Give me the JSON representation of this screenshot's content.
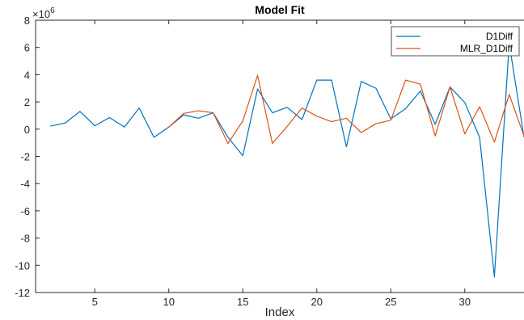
{
  "chart_data": {
    "type": "line",
    "title": "Model Fit",
    "xlabel": "Index",
    "ylabel": "",
    "y_exponent_label": "×10",
    "y_exponent_power": "6",
    "xlim": [
      1,
      34
    ],
    "ylim": [
      -12,
      8
    ],
    "x_ticks": [
      5,
      10,
      15,
      20,
      25,
      30
    ],
    "y_ticks": [
      -12,
      -10,
      -8,
      -6,
      -4,
      -2,
      0,
      2,
      4,
      6,
      8
    ],
    "grid": false,
    "legend_position": "top-right",
    "series": [
      {
        "name": "D1Diff",
        "color": "#0072BD",
        "x": [
          2,
          3,
          4,
          5,
          6,
          7,
          8,
          9,
          10,
          11,
          12,
          13,
          14,
          15,
          16,
          17,
          18,
          19,
          20,
          21,
          22,
          23,
          24,
          25,
          26,
          27,
          28,
          29,
          30,
          31,
          32,
          33,
          34
        ],
        "values": [
          0.22,
          0.45,
          1.3,
          0.25,
          0.85,
          0.15,
          1.55,
          -0.6,
          0.15,
          1.05,
          0.8,
          1.2,
          -0.6,
          -1.95,
          2.95,
          1.2,
          1.6,
          0.7,
          3.6,
          3.6,
          -1.3,
          3.5,
          3.0,
          0.75,
          1.5,
          2.8,
          0.35,
          3.1,
          1.95,
          -0.6,
          -10.85,
          6.3,
          -0.6
        ]
      },
      {
        "name": "MLR_D1Diff",
        "color": "#D95319",
        "x": [
          10,
          11,
          12,
          13,
          14,
          15,
          16,
          17,
          18,
          19,
          20,
          21,
          22,
          23,
          24,
          25,
          26,
          27,
          28,
          29,
          30,
          31,
          32,
          33,
          34
        ],
        "values": [
          0.15,
          1.15,
          1.35,
          1.2,
          -1.05,
          0.6,
          3.95,
          -1.05,
          0.2,
          1.55,
          0.95,
          0.55,
          0.8,
          -0.25,
          0.4,
          0.65,
          3.6,
          3.3,
          -0.5,
          3.1,
          -0.35,
          1.65,
          -0.95,
          2.55,
          -0.5
        ]
      }
    ]
  }
}
